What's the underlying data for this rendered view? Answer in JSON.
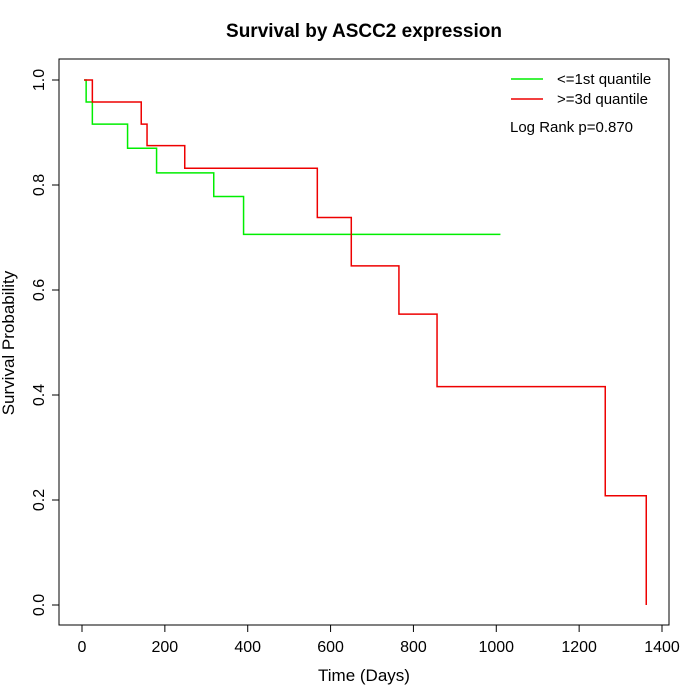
{
  "chart_data": {
    "type": "line",
    "title": "Survival by ASCC2 expression",
    "xlabel": "Time (Days)",
    "ylabel": "Survival Probability",
    "xlim": [
      0,
      1400
    ],
    "ylim": [
      0,
      1
    ],
    "xticks": [
      0,
      200,
      400,
      600,
      800,
      1000,
      1200,
      1400
    ],
    "yticks": [
      0.0,
      0.2,
      0.4,
      0.6,
      0.8,
      1.0
    ],
    "xtick_labels": [
      "0",
      "200",
      "400",
      "600",
      "800",
      "1000",
      "1200",
      "1400"
    ],
    "ytick_labels": [
      "0.0",
      "0.2",
      "0.4",
      "0.6",
      "0.8",
      "1.0"
    ],
    "grid": false,
    "legend_position": "top-right",
    "annotation": "Log Rank p=0.870",
    "series": [
      {
        "name": "<=1st quantile",
        "color": "#00ee00",
        "step": true,
        "points": [
          [
            5,
            1.0
          ],
          [
            10,
            0.958
          ],
          [
            25,
            0.916
          ],
          [
            110,
            0.87
          ],
          [
            180,
            0.823
          ],
          [
            318,
            0.778
          ],
          [
            390,
            0.706
          ],
          [
            1010,
            0.706
          ]
        ]
      },
      {
        "name": ">=3d quantile",
        "color": "#ee0000",
        "step": true,
        "points": [
          [
            5,
            1.0
          ],
          [
            25,
            0.958
          ],
          [
            143,
            0.916
          ],
          [
            157,
            0.875
          ],
          [
            248,
            0.832
          ],
          [
            568,
            0.738
          ],
          [
            650,
            0.646
          ],
          [
            765,
            0.554
          ],
          [
            857,
            0.416
          ],
          [
            1263,
            0.208
          ],
          [
            1362,
            0.0
          ]
        ]
      }
    ]
  }
}
